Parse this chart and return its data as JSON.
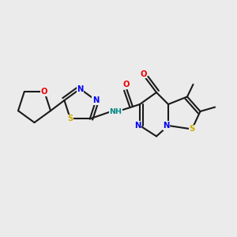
{
  "bg": "#ebebeb",
  "bc": "#1a1a1a",
  "lw": 1.5,
  "dbl_off": 0.12,
  "fs": 7.2,
  "atom_colors": {
    "N": "#0000ee",
    "O": "#ee0000",
    "S": "#ccaa00",
    "H": "#008888"
  },
  "fig_w": 3.0,
  "fig_h": 3.0,
  "dpi": 100,
  "xlim": [
    0,
    10
  ],
  "ylim": [
    0,
    10
  ]
}
